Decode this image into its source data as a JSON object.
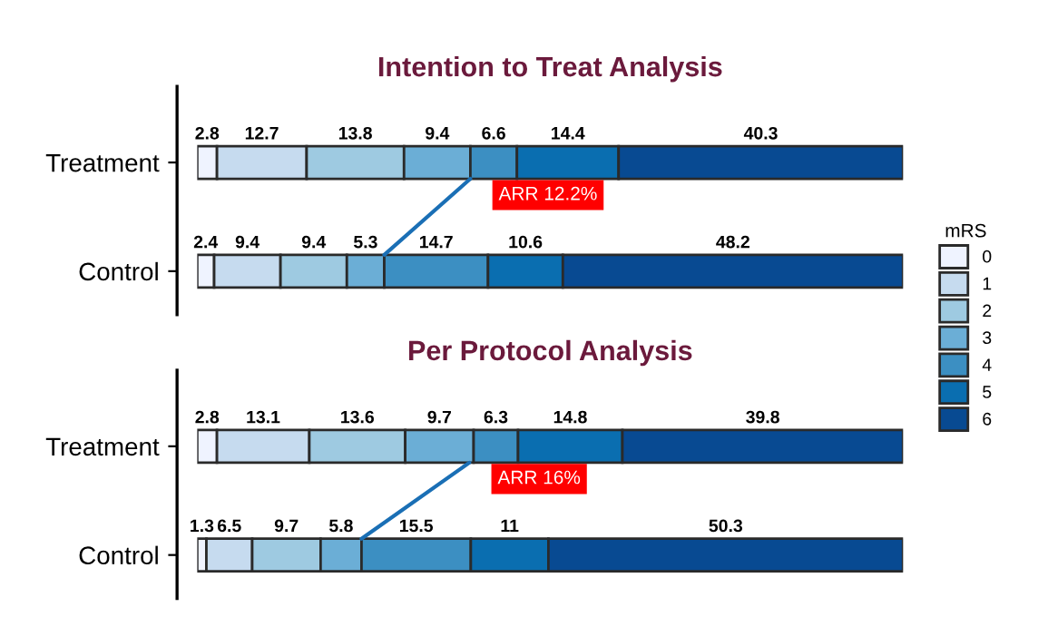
{
  "chart_data": [
    {
      "type": "bar",
      "orientation": "horizontal",
      "stacked": true,
      "title": "Intention to Treat Analysis",
      "categories": [
        "Treatment",
        "Control"
      ],
      "tick_labels": "y",
      "data_labels": true,
      "legend": "right",
      "legend_title": "mRS",
      "annotations": [
        {
          "text": "ARR 12.2%",
          "x": 38.7,
          "y": "Treatment"
        }
      ],
      "series": [
        {
          "name": "0",
          "color": "#eff3ff",
          "values": [
            2.8,
            2.4
          ]
        },
        {
          "name": "1",
          "color": "#c6dbef",
          "values": [
            12.7,
            9.4
          ]
        },
        {
          "name": "2",
          "color": "#9ecae1",
          "values": [
            13.8,
            9.4
          ]
        },
        {
          "name": "3",
          "color": "#6baed6",
          "values": [
            9.4,
            5.3
          ]
        },
        {
          "name": "4",
          "color": "#3c8fc2",
          "values": [
            6.6,
            14.7
          ]
        },
        {
          "name": "5",
          "color": "#0a6eb0",
          "values": [
            14.4,
            10.6
          ]
        },
        {
          "name": "6",
          "color": "#084a92",
          "values": [
            40.3,
            48.2
          ]
        }
      ]
    },
    {
      "type": "bar",
      "orientation": "horizontal",
      "stacked": true,
      "title": "Per Protocol Analysis",
      "categories": [
        "Treatment",
        "Control"
      ],
      "tick_labels": "y",
      "data_labels": true,
      "annotations": [
        {
          "text": "ARR 16%",
          "x": 38.6,
          "y": "Treatment"
        }
      ],
      "series": [
        {
          "name": "0",
          "color": "#eff3ff",
          "values": [
            2.8,
            1.3
          ]
        },
        {
          "name": "1",
          "color": "#c6dbef",
          "values": [
            13.1,
            6.5
          ]
        },
        {
          "name": "2",
          "color": "#9ecae1",
          "values": [
            13.6,
            9.7
          ]
        },
        {
          "name": "3",
          "color": "#6baed6",
          "values": [
            9.7,
            5.8
          ]
        },
        {
          "name": "4",
          "color": "#3c8fc2",
          "values": [
            6.3,
            15.5
          ]
        },
        {
          "name": "5",
          "color": "#0a6eb0",
          "values": [
            14.8,
            11
          ]
        },
        {
          "name": "6",
          "color": "#084a92",
          "values": [
            39.8,
            50.3
          ]
        }
      ]
    }
  ]
}
